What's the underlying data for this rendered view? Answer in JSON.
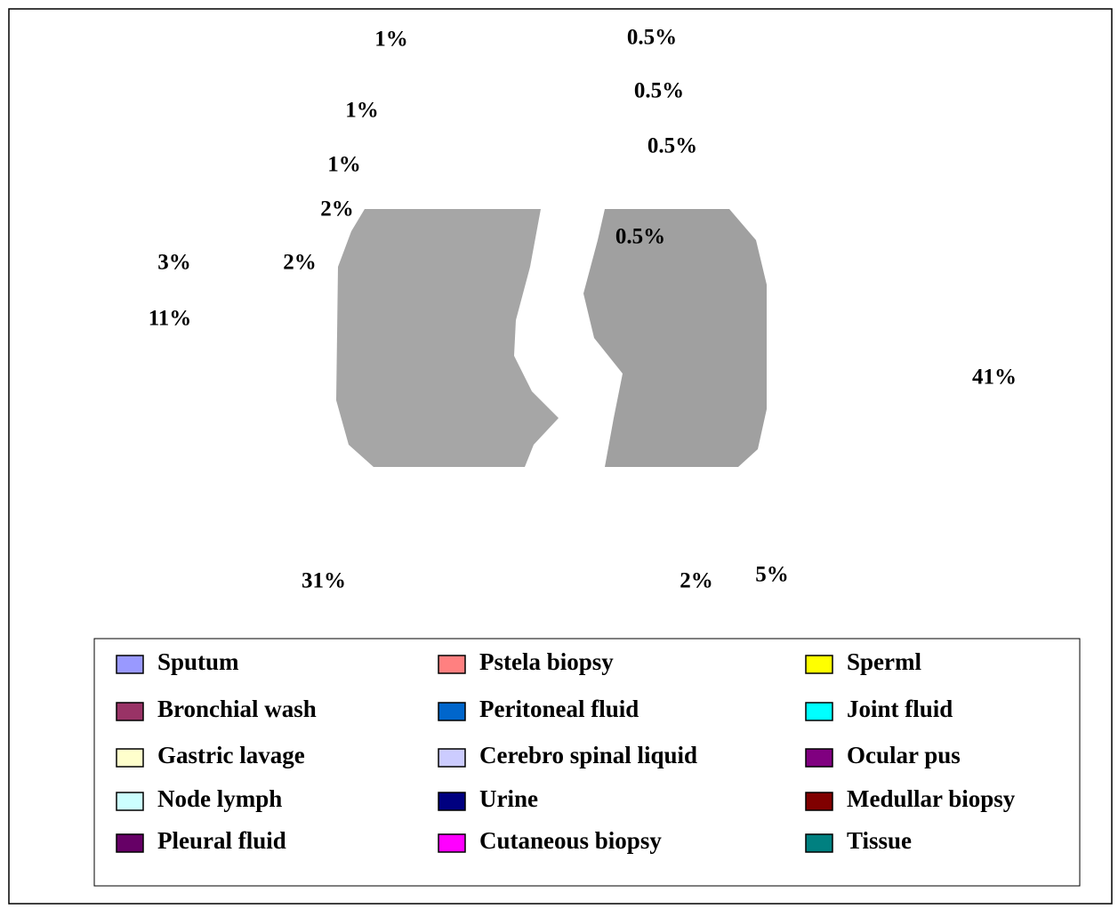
{
  "chart_data": {
    "type": "pie",
    "categories": [
      "Sputum",
      "Bronchial wash",
      "Gastric lavage",
      "Node lymph",
      "Pleural fluid",
      "Pstela biopsy",
      "Peritoneal fluid",
      "Cerebro spinal liquid",
      "Urine",
      "Cutaneous biopsy",
      "Sperml",
      "Joint fluid",
      "Ocular pus",
      "Medullar biopsy",
      "Tissue"
    ],
    "values": [
      41,
      31,
      11,
      5,
      3,
      2,
      2,
      2,
      1,
      1,
      1,
      0.5,
      0.5,
      0.5,
      0.5
    ],
    "value_labels": [
      "41%",
      "31%",
      "11%",
      "5%",
      "3%",
      "2%",
      "2%",
      "2%",
      "1%",
      "1%",
      "1%",
      "0.5%",
      "0.5%",
      "0.5%",
      "0.5%"
    ],
    "colors": [
      "#9999ff",
      "#993366",
      "#ffffcc",
      "#ccffff",
      "#660066",
      "#ff8080",
      "#0066cc",
      "#ccccff",
      "#000080",
      "#ff00ff",
      "#ffff00",
      "#00ffff",
      "#800080",
      "#800000",
      "#008080"
    ],
    "legend": "bottom"
  }
}
